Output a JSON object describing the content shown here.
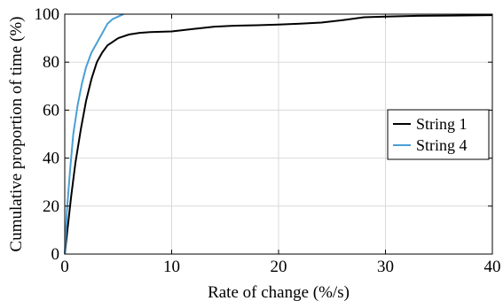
{
  "chart_data": {
    "type": "line",
    "xlabel": "Rate of change (%/s)",
    "ylabel": "Cumulative proportion of time (%)",
    "xlim": [
      0,
      40
    ],
    "ylim": [
      0,
      100
    ],
    "x_ticks": [
      0,
      10,
      20,
      30,
      40
    ],
    "y_ticks": [
      0,
      20,
      40,
      60,
      80,
      100
    ],
    "x_tick_labels": [
      "0",
      "10",
      "20",
      "30",
      "40"
    ],
    "y_tick_labels": [
      "0",
      "20",
      "40",
      "60",
      "80",
      "100"
    ],
    "grid": true,
    "legend_position": "right",
    "series": [
      {
        "name": "String 1",
        "color": "#000000",
        "x": [
          0,
          0.3,
          0.6,
          1.0,
          1.5,
          2.0,
          2.5,
          3.0,
          3.5,
          4.0,
          5.0,
          6.0,
          7.0,
          8.0,
          10.0,
          12.0,
          14.0,
          16.0,
          18.0,
          20.0,
          22.0,
          24.0,
          26.0,
          28.0,
          30.0,
          33.0,
          36.0,
          40.0
        ],
        "y": [
          0,
          12,
          24,
          38,
          52,
          64,
          73,
          80,
          84,
          87,
          90,
          91.5,
          92.2,
          92.5,
          92.8,
          93.8,
          94.8,
          95.2,
          95.4,
          95.7,
          96.0,
          96.5,
          97.5,
          98.7,
          99.0,
          99.3,
          99.4,
          99.6
        ]
      },
      {
        "name": "String 4",
        "color": "#4a9fd5",
        "x": [
          0,
          0.2,
          0.5,
          0.8,
          1.2,
          1.6,
          2.0,
          2.5,
          3.0,
          3.5,
          4.0,
          4.5,
          5.0,
          5.5
        ],
        "y": [
          0,
          18,
          35,
          50,
          62,
          71,
          78,
          84,
          88,
          92,
          96,
          98,
          99,
          100
        ]
      }
    ]
  }
}
